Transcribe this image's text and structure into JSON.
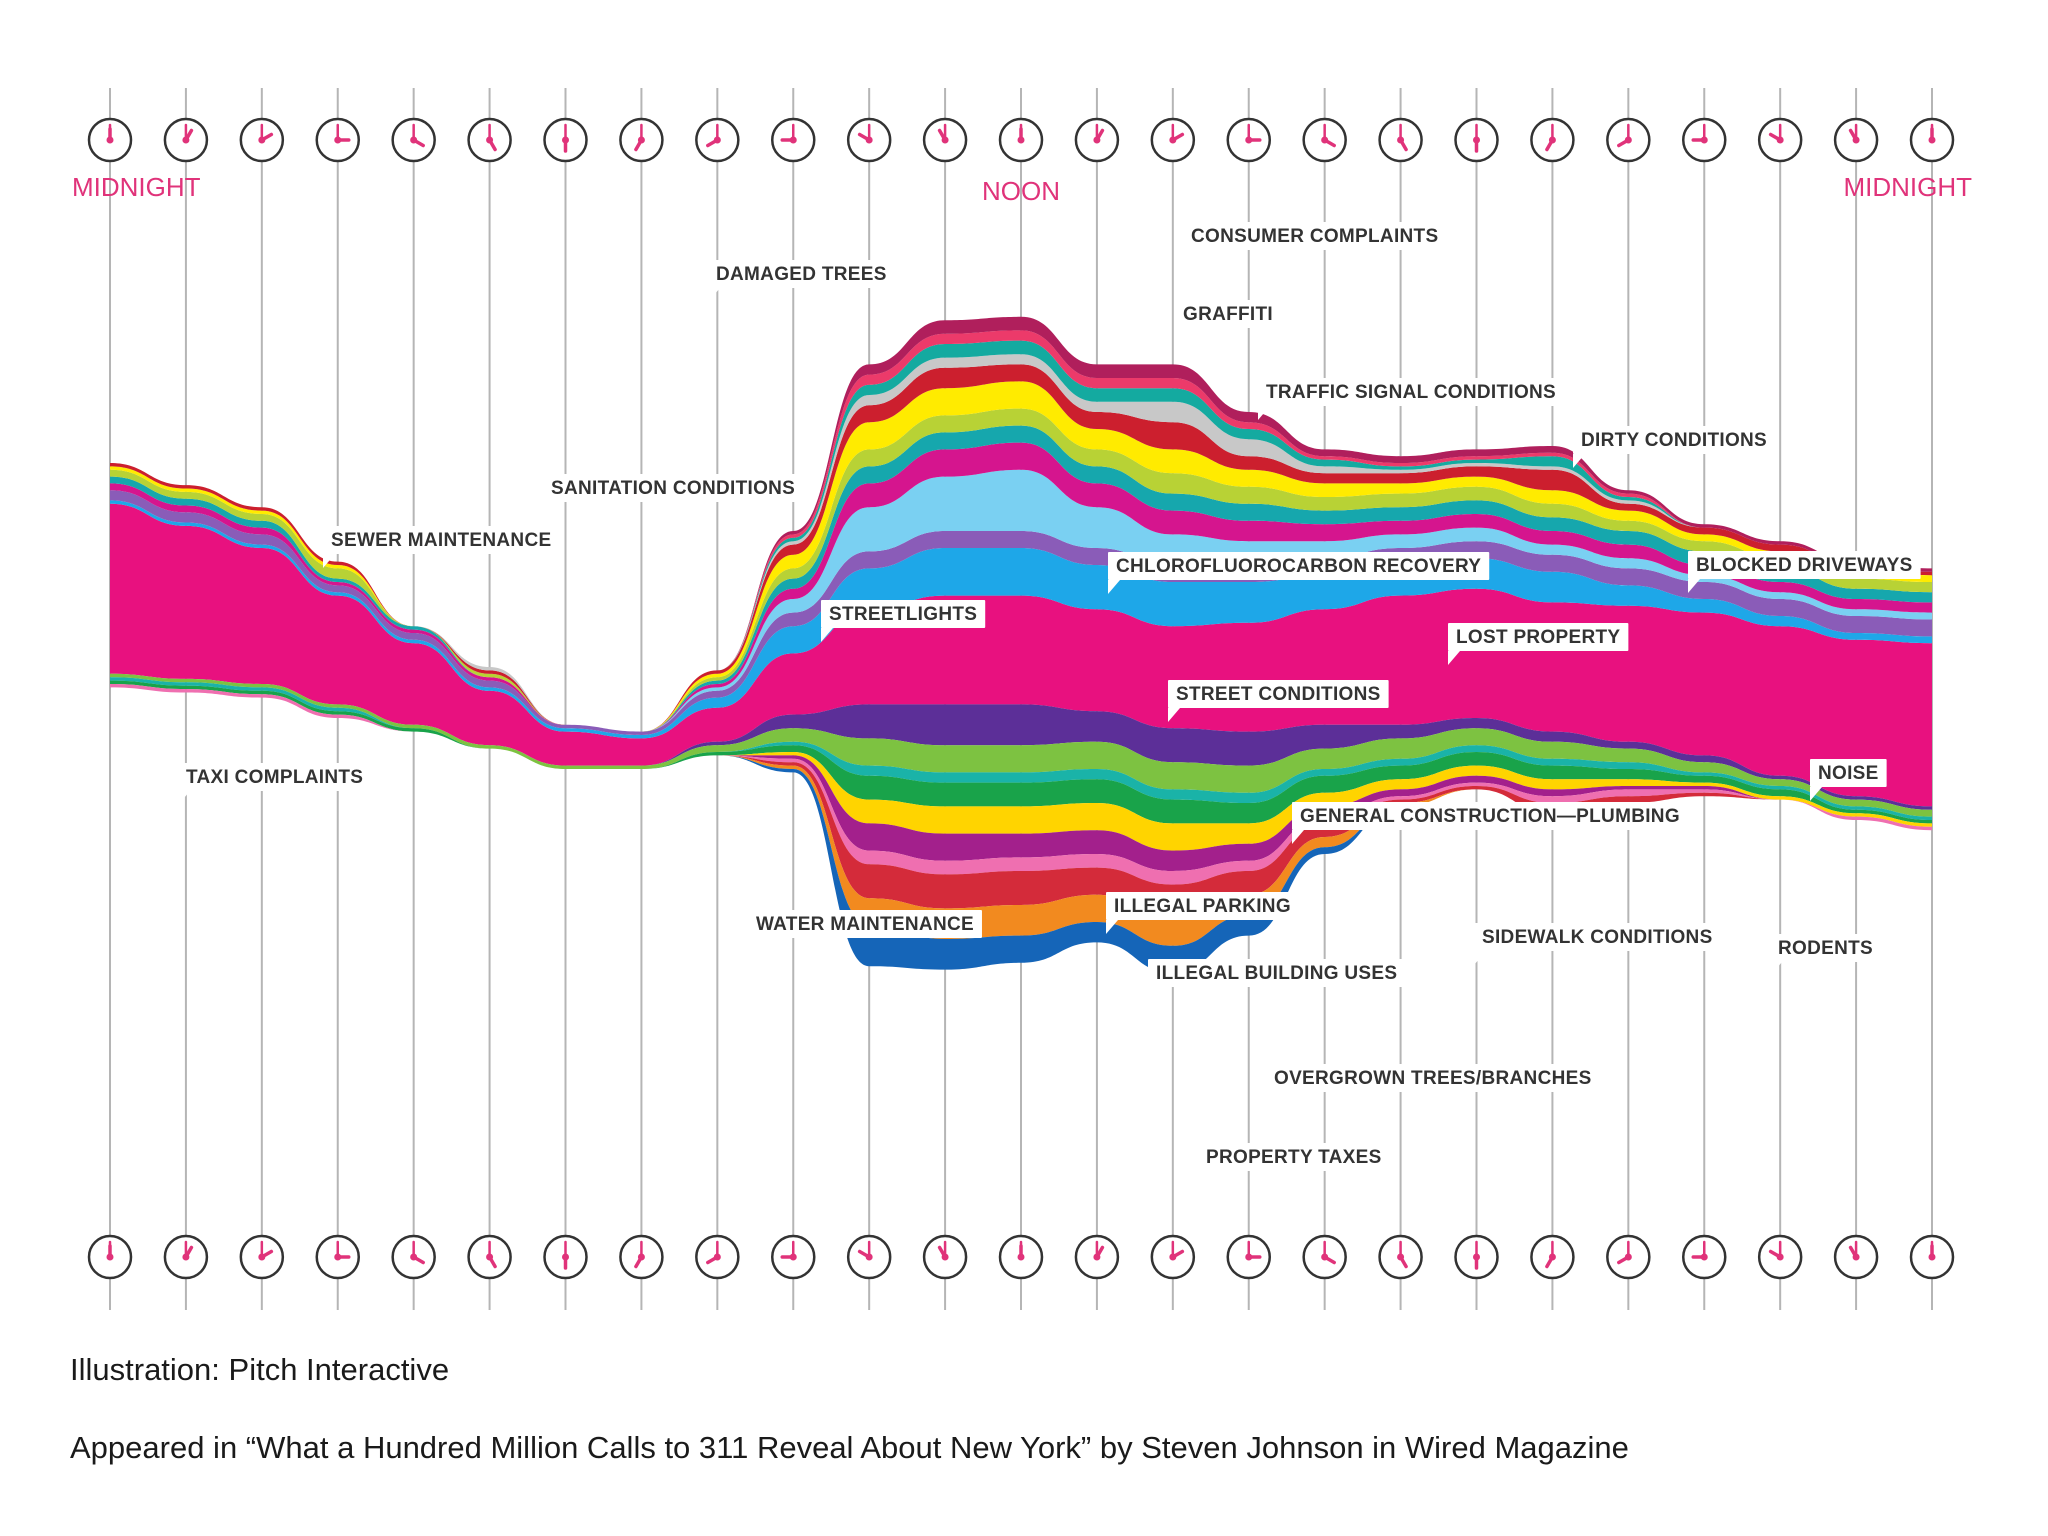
{
  "chart_data": {
    "type": "area",
    "subtype": "streamgraph",
    "description_unit": "relative call volume (stream thickness, arbitrary units)",
    "x": [
      0,
      1,
      2,
      3,
      4,
      5,
      6,
      7,
      8,
      9,
      10,
      11,
      12,
      13,
      14,
      15,
      16,
      17,
      18,
      19,
      20,
      21,
      22,
      23,
      24
    ],
    "x_axis_clock_times": [
      "0:00",
      "1:00",
      "2:00",
      "3:00",
      "4:00",
      "5:00",
      "6:00",
      "7:00",
      "8:00",
      "9:00",
      "10:00",
      "11:00",
      "12:00",
      "13:00",
      "14:00",
      "15:00",
      "16:00",
      "17:00",
      "18:00",
      "19:00",
      "20:00",
      "21:00",
      "22:00",
      "23:00",
      "24:00"
    ],
    "time_labels": [
      {
        "text": "MIDNIGHT",
        "hour": 0
      },
      {
        "text": "NOON",
        "hour": 12
      },
      {
        "text": "MIDNIGHT",
        "hour": 24
      }
    ],
    "center_baseline": [
      108,
      104,
      100,
      90,
      80,
      70,
      61,
      60,
      68,
      80,
      88,
      90,
      90,
      87,
      82,
      82,
      85,
      87,
      89,
      85,
      83,
      80,
      75,
      70,
      68
    ],
    "series": [
      {
        "name": "PROPERTY TAXES",
        "color": "#1565b8",
        "side": "below",
        "values": [
          0,
          0,
          0,
          0,
          0,
          0,
          0,
          0,
          0,
          1,
          12,
          9,
          8,
          6,
          8,
          6,
          2,
          0,
          0,
          0,
          0,
          0,
          0,
          0,
          0
        ]
      },
      {
        "name": "",
        "color": "#f28a1f",
        "side": "below",
        "values": [
          0,
          0,
          0,
          0,
          0,
          0,
          0,
          0,
          0,
          1,
          8,
          9,
          9,
          8,
          8,
          6,
          3,
          1,
          0,
          0,
          0,
          0,
          0,
          0,
          0
        ]
      },
      {
        "name": "OVERGROWN TREES/BRANCHES",
        "color": "#d42b3a",
        "side": "below",
        "values": [
          0,
          0,
          0,
          0,
          0,
          0,
          0,
          0,
          0,
          1,
          10,
          10,
          10,
          8,
          10,
          7,
          4,
          1,
          1,
          3,
          2,
          1,
          0,
          0,
          0
        ]
      },
      {
        "name": "",
        "color": "#ef6fb0",
        "side": "below",
        "values": [
          1,
          1,
          1,
          1,
          0,
          0,
          0,
          0,
          0,
          1,
          4,
          4,
          4,
          4,
          4,
          3,
          2,
          1,
          1,
          2,
          2,
          1,
          0,
          1,
          1
        ]
      },
      {
        "name": "",
        "color": "#a3208c",
        "side": "below",
        "values": [
          0,
          0,
          0,
          0,
          0,
          0,
          0,
          0,
          0,
          1,
          8,
          8,
          7,
          7,
          6,
          5,
          3,
          2,
          2,
          2,
          1,
          1,
          0,
          0,
          0
        ]
      },
      {
        "name": "ILLEGAL BUILDING USES",
        "color": "#ffd400",
        "side": "below",
        "values": [
          0,
          0,
          0,
          0,
          0,
          0,
          0,
          0,
          0,
          1,
          7,
          8,
          8,
          8,
          8,
          6,
          4,
          3,
          3,
          3,
          2,
          1,
          1,
          1,
          1
        ]
      },
      {
        "name": "",
        "color": "#19a34a",
        "side": "below",
        "values": [
          1,
          1,
          1,
          1,
          1,
          0,
          0,
          0,
          1,
          2,
          7,
          7,
          7,
          7,
          7,
          6,
          5,
          4,
          4,
          4,
          3,
          2,
          2,
          1,
          1
        ]
      },
      {
        "name": "",
        "color": "#1ab3a8",
        "side": "below",
        "values": [
          1,
          1,
          1,
          1,
          0,
          0,
          0,
          0,
          0,
          1,
          3,
          3,
          3,
          3,
          3,
          3,
          2,
          2,
          2,
          2,
          2,
          1,
          1,
          1,
          1
        ]
      },
      {
        "name": "SIDEWALK CONDITIONS",
        "color": "#7dc241",
        "side": "below",
        "values": [
          1,
          1,
          1,
          1,
          1,
          1,
          1,
          1,
          2,
          4,
          8,
          8,
          8,
          8,
          8,
          8,
          6,
          6,
          5,
          5,
          4,
          3,
          2,
          2,
          2
        ]
      },
      {
        "name": "ILLEGAL PARKING",
        "color": "#5c2f98",
        "side": "below",
        "values": [
          0,
          0,
          0,
          0,
          0,
          0,
          0,
          0,
          1,
          4,
          10,
          12,
          12,
          9,
          10,
          10,
          7,
          4,
          3,
          3,
          2,
          2,
          1,
          1,
          1
        ]
      },
      {
        "name": "NOISE",
        "color": "#e8117f",
        "side": "center",
        "values": [
          50,
          45,
          40,
          32,
          24,
          16,
          10,
          8,
          10,
          18,
          28,
          32,
          32,
          30,
          30,
          32,
          34,
          38,
          38,
          38,
          40,
          42,
          44,
          46,
          48
        ]
      },
      {
        "name": "STREET CONDITIONS",
        "color": "#1ea7e8",
        "side": "above",
        "values": [
          1,
          1,
          1,
          1,
          1,
          1,
          1,
          1,
          3,
          8,
          12,
          14,
          14,
          13,
          13,
          12,
          10,
          9,
          9,
          9,
          6,
          4,
          3,
          2,
          2
        ]
      },
      {
        "name": "LOST PROPERTY",
        "color": "#8a5cb8",
        "side": "above",
        "values": [
          3,
          3,
          3,
          2,
          2,
          2,
          1,
          1,
          2,
          4,
          5,
          5,
          5,
          5,
          5,
          5,
          5,
          5,
          5,
          5,
          5,
          5,
          5,
          5,
          5
        ]
      },
      {
        "name": "STREETLIGHTS",
        "color": "#7ad0f2",
        "side": "above",
        "values": [
          0,
          0,
          0,
          0,
          0,
          0,
          0,
          0,
          1,
          4,
          13,
          16,
          18,
          12,
          9,
          7,
          5,
          4,
          4,
          3,
          3,
          2,
          2,
          2,
          2
        ]
      },
      {
        "name": "CHLOROFLUOROCARBON RECOVERY",
        "color": "#d5158e",
        "side": "above",
        "values": [
          2,
          2,
          2,
          1,
          1,
          1,
          0,
          0,
          1,
          3,
          7,
          8,
          8,
          7,
          7,
          6,
          5,
          4,
          4,
          4,
          4,
          3,
          3,
          3,
          3
        ]
      },
      {
        "name": "BLOCKED DRIVEWAYS",
        "color": "#16a7ad",
        "side": "above",
        "values": [
          2,
          2,
          2,
          1,
          1,
          0,
          0,
          0,
          1,
          3,
          5,
          5,
          5,
          5,
          5,
          5,
          4,
          4,
          4,
          4,
          4,
          4,
          4,
          3,
          3
        ]
      },
      {
        "name": "SEWER MAINTENANCE",
        "color": "#b8d235",
        "side": "above",
        "values": [
          2,
          2,
          2,
          3,
          0,
          1,
          0,
          0,
          1,
          3,
          5,
          5,
          5,
          5,
          6,
          5,
          4,
          4,
          4,
          4,
          3,
          3,
          3,
          3,
          3
        ]
      },
      {
        "name": "SANITATION CONDITIONS",
        "color": "#ffeb00",
        "side": "above",
        "values": [
          1,
          1,
          1,
          1,
          0,
          0,
          0,
          0,
          1,
          4,
          8,
          8,
          8,
          6,
          7,
          5,
          4,
          3,
          3,
          4,
          3,
          2,
          2,
          2,
          2
        ]
      },
      {
        "name": "DIRTY CONDITIONS",
        "color": "#cc1f2e",
        "side": "above",
        "values": [
          1,
          1,
          1,
          1,
          0,
          1,
          0,
          0,
          1,
          3,
          5,
          6,
          5,
          5,
          8,
          4,
          3,
          3,
          3,
          6,
          2,
          2,
          2,
          2,
          1
        ]
      },
      {
        "name": "TRAFFIC SIGNAL CONDITIONS",
        "color": "#c8c8c8",
        "side": "above",
        "values": [
          0,
          0,
          0,
          0,
          0,
          1,
          0,
          0,
          0,
          1,
          3,
          3,
          3,
          3,
          6,
          5,
          2,
          1,
          1,
          1,
          1,
          0,
          0,
          0,
          0
        ]
      },
      {
        "name": "GRAFFITI",
        "color": "#14aaa0",
        "side": "above",
        "values": [
          0,
          0,
          0,
          0,
          0,
          0,
          0,
          0,
          0,
          1,
          3,
          4,
          4,
          4,
          4,
          3,
          2,
          1,
          1,
          3,
          1,
          0,
          0,
          0,
          0
        ]
      },
      {
        "name": "DAMAGED TREES",
        "color": "#ec3a6a",
        "side": "above",
        "values": [
          0,
          0,
          0,
          0,
          0,
          0,
          0,
          0,
          0,
          1,
          3,
          3,
          3,
          3,
          3,
          2,
          1,
          1,
          1,
          1,
          1,
          0,
          0,
          0,
          0
        ]
      },
      {
        "name": "CONSUMER COMPLAINTS",
        "color": "#b01f5c",
        "side": "above",
        "values": [
          0,
          0,
          0,
          0,
          0,
          0,
          0,
          0,
          0,
          1,
          3,
          4,
          4,
          4,
          4,
          3,
          2,
          2,
          2,
          2,
          1,
          1,
          1,
          1,
          1
        ]
      }
    ],
    "annotations": [
      {
        "text": "CONSUMER COMPLAINTS",
        "hour": 14.0
      },
      {
        "text": "DAMAGED TREES",
        "hour": 10.4
      },
      {
        "text": "GRAFFITI",
        "hour": 14.0
      },
      {
        "text": "TRAFFIC SIGNAL CONDITIONS",
        "hour": 15.0
      },
      {
        "text": "DIRTY CONDITIONS",
        "hour": 19.2
      },
      {
        "text": "SANITATION CONDITIONS",
        "hour": 9.0
      },
      {
        "text": "SEWER MAINTENANCE",
        "hour": 2.8
      },
      {
        "text": "CHLOROFLUOROCARBON RECOVERY",
        "hour": 13.1
      },
      {
        "text": "BLOCKED DRIVEWAYS",
        "hour": 20.9
      },
      {
        "text": "STREETLIGHTS",
        "hour": 10.9
      },
      {
        "text": "LOST PROPERTY",
        "hour": 17.7
      },
      {
        "text": "STREET CONDITIONS",
        "hour": 13.9
      },
      {
        "text": "NOISE",
        "hour": 22.8
      },
      {
        "text": "TAXI COMPLAINTS",
        "hour": 1.0
      },
      {
        "text": "GENERAL CONSTRUCTION—PLUMBING",
        "hour": 15.5
      },
      {
        "text": "WATER MAINTENANCE",
        "hour": 11.7
      },
      {
        "text": "ILLEGAL PARKING",
        "hour": 13.0
      },
      {
        "text": "ILLEGAL BUILDING USES",
        "hour": 13.6
      },
      {
        "text": "SIDEWALK CONDITIONS",
        "hour": 17.3
      },
      {
        "text": "RODENTS",
        "hour": 21.8
      },
      {
        "text": "OVERGROWN TREES/BRANCHES",
        "hour": 15.2
      },
      {
        "text": "PROPERTY TAXES",
        "hour": 14.3
      }
    ],
    "colors": {
      "clock": "#e0337a",
      "gridline": "#b5b5b5",
      "time_label": "#e0337a",
      "label_text": "#333333"
    }
  },
  "captions": {
    "credit": "Illustration: Pitch Interactive",
    "source": "Appeared in “What a Hundred Million Calls to 311 Reveal About New York” by Steven Johnson in Wired Magazine"
  }
}
